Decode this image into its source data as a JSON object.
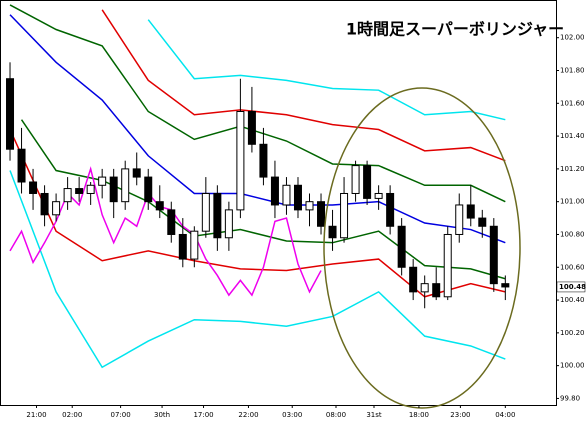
{
  "chart_data": {
    "type": "candlestick",
    "title": "1時間足スーパーボリンジャー",
    "price_label": "100.48",
    "xlim": [
      -0.87,
      47.4
    ],
    "ylim": [
      99.76,
      102.23
    ],
    "yticks": [
      {
        "value": 99.8,
        "label": "99.80"
      },
      {
        "value": 100,
        "label": "100.00"
      },
      {
        "value": 100.2,
        "label": "100.20"
      },
      {
        "value": 100.4,
        "label": "100.40"
      },
      {
        "value": 100.6,
        "label": "100.60"
      },
      {
        "value": 100.8,
        "label": "100.80"
      },
      {
        "value": 101,
        "label": "101.00"
      },
      {
        "value": 101.2,
        "label": "101.20"
      },
      {
        "value": 101.4,
        "label": "101.40"
      },
      {
        "value": 101.6,
        "label": "101.60"
      },
      {
        "value": 101.8,
        "label": "101.80"
      },
      {
        "value": 102,
        "label": "102.00"
      }
    ],
    "xticks": [
      {
        "value": 2.3,
        "label": "21:00"
      },
      {
        "value": 5.4,
        "label": "02:00"
      },
      {
        "value": 9.6,
        "label": "07:00"
      },
      {
        "value": 13.2,
        "label": "30th"
      },
      {
        "value": 16.8,
        "label": "17:00"
      },
      {
        "value": 20.7,
        "label": "22:00"
      },
      {
        "value": 24.5,
        "label": "03:00"
      },
      {
        "value": 28.3,
        "label": "08:00"
      },
      {
        "value": 31.6,
        "label": "31st"
      },
      {
        "value": 35.5,
        "label": "18:00"
      },
      {
        "value": 39.1,
        "label": "23:00"
      },
      {
        "value": 43,
        "label": "04:00"
      }
    ],
    "open": [
      101.75,
      101.32,
      101.12,
      101.05,
      100.92,
      101.0,
      101.08,
      101.05,
      101.1,
      101.15,
      101.0,
      101.2,
      101.15,
      101.0,
      100.95,
      100.8,
      100.65,
      100.82,
      101.05,
      100.78,
      100.95,
      101.55,
      101.35,
      101.15,
      100.98,
      101.1,
      100.95,
      101.0,
      100.85,
      100.78,
      101.05,
      101.22,
      101.02,
      101.05,
      100.85,
      100.6,
      100.45,
      100.5,
      100.42,
      100.8,
      100.98,
      100.9,
      100.85,
      100.5
    ],
    "high": [
      101.85,
      101.45,
      101.2,
      101.1,
      101.05,
      101.15,
      101.15,
      101.12,
      101.2,
      101.2,
      101.25,
      101.3,
      101.2,
      101.1,
      101.0,
      100.9,
      100.85,
      101.15,
      101.1,
      101.0,
      101.75,
      101.7,
      101.45,
      101.25,
      101.15,
      101.15,
      101.05,
      101.05,
      100.95,
      101.15,
      101.25,
      101.25,
      101.1,
      101.1,
      100.9,
      100.65,
      100.55,
      100.6,
      100.85,
      101.05,
      101.1,
      100.95,
      100.9,
      100.55
    ],
    "low": [
      101.25,
      101.05,
      100.95,
      100.85,
      100.88,
      100.95,
      101.0,
      100.98,
      101.02,
      100.9,
      100.95,
      101.1,
      100.95,
      100.9,
      100.75,
      100.6,
      100.6,
      100.78,
      100.7,
      100.7,
      100.9,
      101.3,
      101.1,
      100.9,
      100.92,
      100.9,
      100.85,
      100.8,
      100.7,
      100.75,
      101.0,
      100.98,
      100.95,
      100.8,
      100.55,
      100.4,
      100.35,
      100.4,
      100.4,
      100.75,
      100.85,
      100.78,
      100.45,
      100.4
    ],
    "close": [
      101.32,
      101.12,
      101.05,
      100.92,
      101.0,
      101.08,
      101.05,
      101.1,
      101.15,
      101.0,
      101.2,
      101.15,
      101.0,
      100.95,
      100.8,
      100.65,
      100.82,
      101.05,
      100.78,
      100.95,
      101.55,
      101.35,
      101.15,
      100.98,
      101.1,
      100.95,
      101.0,
      100.85,
      100.78,
      101.05,
      101.22,
      101.02,
      101.05,
      100.85,
      100.6,
      100.45,
      100.5,
      100.42,
      100.8,
      100.98,
      100.9,
      100.85,
      100.5,
      100.48
    ],
    "lines": [
      {
        "color": "#00e5ee",
        "x": [
          0,
          4,
          8,
          12,
          16,
          20,
          24,
          28,
          32,
          36,
          40,
          43
        ],
        "values": [
          null,
          null,
          null,
          102.11,
          101.75,
          101.77,
          101.74,
          101.69,
          101.68,
          101.53,
          101.55,
          101.5
        ]
      },
      {
        "color": "#e00000",
        "x": [
          0,
          4,
          8,
          12,
          16,
          20,
          24,
          28,
          32,
          36,
          40,
          43
        ],
        "values": [
          null,
          null,
          102.17,
          101.74,
          101.53,
          101.56,
          101.53,
          101.47,
          101.44,
          101.31,
          101.33,
          101.25
        ]
      },
      {
        "color": "#006400",
        "x": [
          0,
          4,
          8,
          12,
          16,
          20,
          24,
          28,
          32,
          36,
          40,
          43
        ],
        "values": [
          102.2,
          102.05,
          101.95,
          101.55,
          101.38,
          101.46,
          101.37,
          101.23,
          101.22,
          101.1,
          101.1,
          101.0
        ]
      },
      {
        "color": "#0000e0",
        "x": [
          0,
          4,
          8,
          12,
          16,
          20,
          24,
          28,
          32,
          36,
          40,
          43
        ],
        "values": [
          102.14,
          101.85,
          101.62,
          101.28,
          101.05,
          101.05,
          100.98,
          100.98,
          101.0,
          100.87,
          100.83,
          100.75
        ]
      },
      {
        "color": "#006400",
        "x": [
          1,
          4,
          8,
          12,
          16,
          20,
          24,
          28,
          32,
          36,
          40,
          43
        ],
        "values": [
          101.5,
          101.19,
          101.13,
          101.0,
          100.79,
          100.83,
          100.76,
          100.75,
          100.82,
          100.61,
          100.59,
          100.53
        ]
      },
      {
        "color": "#e00000",
        "x": [
          0,
          4,
          8,
          12,
          16,
          20,
          24,
          28,
          32,
          36,
          40,
          43
        ],
        "values": [
          101.44,
          100.82,
          100.64,
          100.7,
          100.64,
          100.59,
          100.58,
          100.62,
          100.65,
          100.42,
          100.5,
          100.45
        ]
      },
      {
        "color": "#00e5ee",
        "x": [
          0,
          4,
          8,
          12,
          16,
          20,
          24,
          28,
          32,
          36,
          40,
          43
        ],
        "values": [
          101.19,
          100.45,
          99.99,
          100.15,
          100.28,
          100.27,
          100.24,
          100.3,
          100.45,
          100.18,
          100.12,
          100.04
        ]
      },
      {
        "color": "#ee00ee",
        "x": [
          0,
          1,
          2,
          3,
          4,
          5,
          6,
          7,
          8,
          9,
          10,
          11,
          12,
          13,
          14,
          15,
          16,
          17,
          18,
          19,
          20,
          21,
          22,
          23,
          24,
          25,
          26,
          27
        ],
        "values": [
          100.7,
          100.82,
          100.63,
          100.75,
          100.88,
          101.05,
          100.98,
          101.2,
          100.92,
          100.75,
          100.9,
          100.85,
          101.05,
          100.97,
          100.95,
          100.85,
          100.8,
          100.65,
          100.55,
          100.43,
          100.52,
          100.43,
          100.6,
          100.88,
          100.9,
          100.62,
          100.45,
          100.58
        ]
      }
    ]
  }
}
